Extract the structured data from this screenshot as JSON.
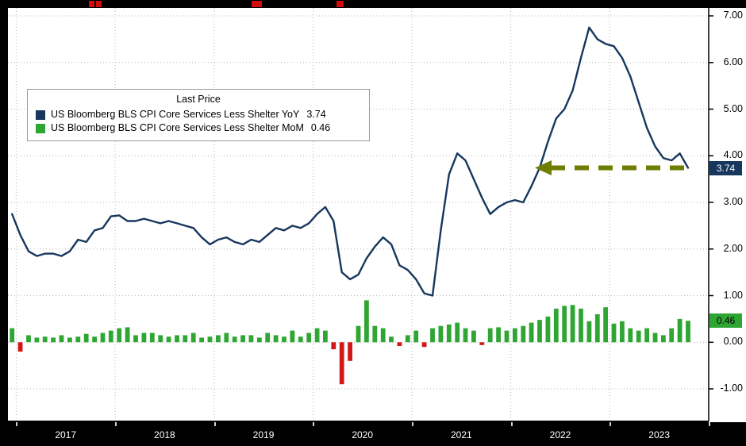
{
  "legend": {
    "title": "Last Price",
    "series": [
      {
        "label": "US Bloomberg BLS CPI Core Services Less Shelter YoY",
        "value": "3.74",
        "color": "#17375e"
      },
      {
        "label": "US Bloomberg BLS CPI Core Services Less Shelter MoM",
        "value": "0.46",
        "color": "#2fa633"
      }
    ]
  },
  "axes": {
    "y_ticks": [
      "7.00",
      "6.00",
      "5.00",
      "4.00",
      "3.00",
      "2.00",
      "1.00",
      "0.00",
      "-1.00"
    ],
    "x_years": [
      "2017",
      "2018",
      "2019",
      "2020",
      "2021",
      "2022",
      "2023"
    ]
  },
  "price_labels": [
    {
      "text": "3.74",
      "value": 3.74,
      "bg": "#17375e",
      "fg": "#ffffff"
    },
    {
      "text": "0.46",
      "value": 0.46,
      "bg": "#2fa633",
      "fg": "#000000"
    }
  ],
  "chart_data": {
    "type": "line+bar",
    "title": "Last Price",
    "x_frequency": "monthly",
    "x_start": "2016-12",
    "x_end": "2023-10",
    "ylim": [
      -1.7,
      7.17
    ],
    "grid": true,
    "legend_position": "top-left",
    "series": [
      {
        "name": "US Bloomberg BLS CPI Core Services Less Shelter YoY",
        "type": "line",
        "color": "#17375e",
        "last_price": 3.74,
        "values": [
          2.75,
          2.3,
          1.95,
          1.85,
          1.9,
          1.9,
          1.85,
          1.95,
          2.2,
          2.15,
          2.4,
          2.45,
          2.7,
          2.72,
          2.6,
          2.6,
          2.65,
          2.6,
          2.55,
          2.6,
          2.55,
          2.5,
          2.45,
          2.25,
          2.1,
          2.2,
          2.25,
          2.15,
          2.1,
          2.2,
          2.15,
          2.3,
          2.45,
          2.4,
          2.5,
          2.45,
          2.55,
          2.75,
          2.9,
          2.6,
          1.5,
          1.35,
          1.45,
          1.8,
          2.05,
          2.25,
          2.1,
          1.65,
          1.55,
          1.35,
          1.05,
          1.0,
          2.4,
          3.6,
          4.05,
          3.9,
          3.5,
          3.1,
          2.75,
          2.9,
          3.0,
          3.05,
          3.0,
          3.35,
          3.74,
          4.3,
          4.8,
          5.0,
          5.4,
          6.1,
          6.75,
          6.5,
          6.4,
          6.35,
          6.1,
          5.7,
          5.15,
          4.6,
          4.2,
          3.95,
          3.9,
          4.05,
          3.74
        ]
      },
      {
        "name": "US Bloomberg BLS CPI Core Services Less Shelter MoM",
        "type": "bar",
        "color_positive": "#2fa633",
        "color_negative": "#d31717",
        "last_price": 0.46,
        "values": [
          0.3,
          -0.2,
          0.15,
          0.1,
          0.12,
          0.1,
          0.15,
          0.1,
          0.12,
          0.18,
          0.12,
          0.2,
          0.25,
          0.3,
          0.32,
          0.15,
          0.2,
          0.2,
          0.15,
          0.12,
          0.15,
          0.15,
          0.2,
          0.1,
          0.12,
          0.15,
          0.2,
          0.12,
          0.15,
          0.15,
          0.1,
          0.2,
          0.15,
          0.12,
          0.25,
          0.12,
          0.2,
          0.3,
          0.25,
          -0.15,
          -0.9,
          -0.4,
          0.35,
          0.9,
          0.35,
          0.3,
          0.12,
          -0.08,
          0.15,
          0.25,
          -0.1,
          0.3,
          0.35,
          0.38,
          0.42,
          0.3,
          0.25,
          -0.06,
          0.3,
          0.32,
          0.25,
          0.3,
          0.35,
          0.42,
          0.48,
          0.55,
          0.72,
          0.78,
          0.8,
          0.72,
          0.45,
          0.6,
          0.75,
          0.4,
          0.45,
          0.3,
          0.25,
          0.3,
          0.2,
          0.15,
          0.3,
          0.5,
          0.46
        ]
      }
    ],
    "annotation": {
      "type": "dashed-arrow-left",
      "color": "#6f7d00",
      "y": 3.74,
      "x_tip": "2022-04",
      "x_end": "2023-10"
    }
  }
}
